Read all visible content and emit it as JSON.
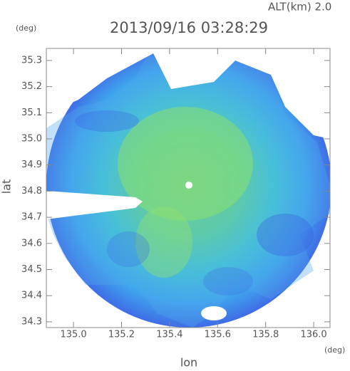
{
  "chart_data": {
    "type": "radar",
    "title": "2013/09/16 03:28:29",
    "altitude_label": "ALT(km) 2.0",
    "xlabel": "lon",
    "ylabel": "lat",
    "x_unit": "(deg)",
    "y_unit": "(deg)",
    "xlim": [
      134.887,
      136.068
    ],
    "ylim": [
      34.278,
      35.346
    ],
    "xticks": [
      {
        "value": 135,
        "label": "135.0"
      },
      135.2,
      135.4,
      135.6,
      135.8,
      {
        "value": 136,
        "label": "136.0"
      }
    ],
    "yticks": [
      34.3,
      34.4,
      34.5,
      34.6,
      34.7,
      34.8,
      34.9,
      {
        "value": 35,
        "label": "35.0"
      },
      35.1,
      35.2,
      35.3
    ]
  }
}
